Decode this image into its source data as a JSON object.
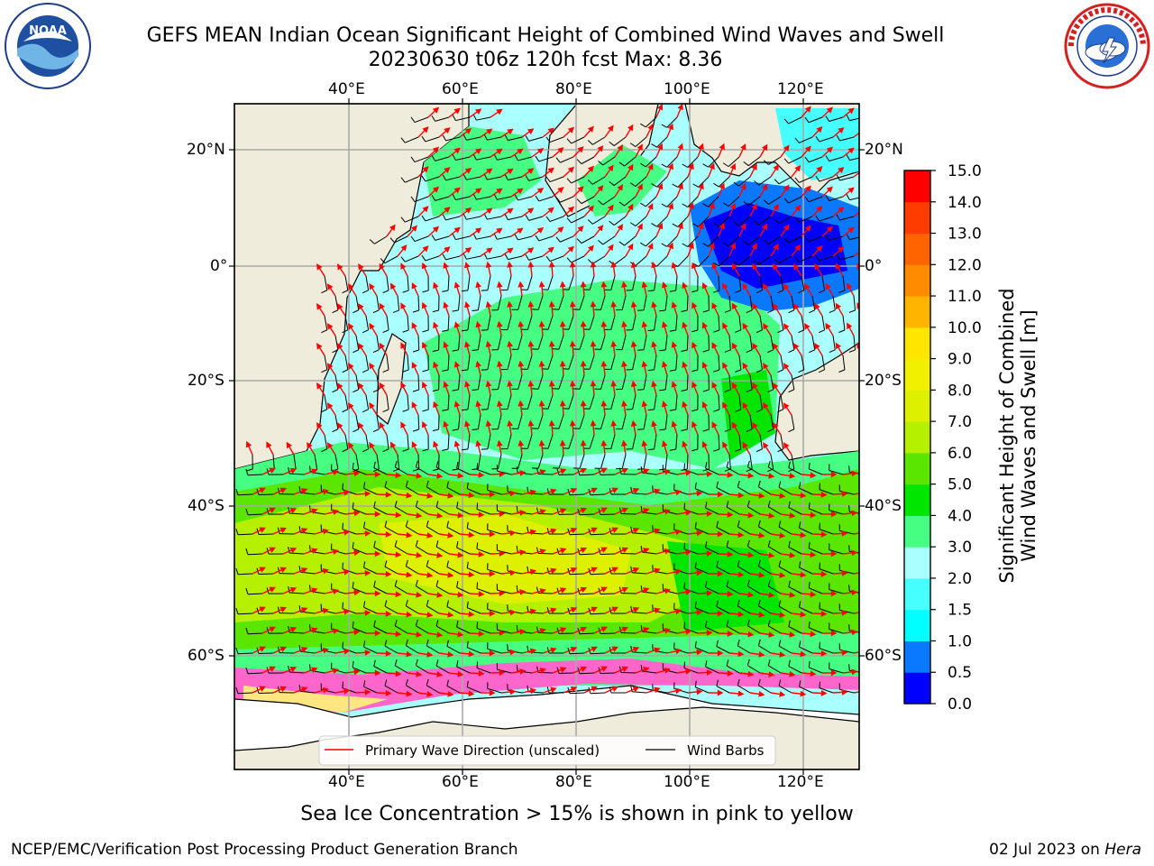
{
  "header": {
    "title_line1": "GEFS MEAN Indian Ocean Significant Height of Combined Wind Waves and Swell",
    "title_line2": "20230630 t06z 120h fcst   Max: 8.36"
  },
  "logos": {
    "left_name": "NOAA",
    "left_ring_text": "NATIONAL OCEANIC AND ATMOSPHERIC ADMINISTRATION · U.S. DEPARTMENT OF COMMERCE",
    "right_ring_text": "NATIONAL WEATHER SERVICE"
  },
  "footer": {
    "ice_note": "Sea Ice Concentration > 15% is shown in pink to yellow",
    "credit": "NCEP/EMC/Verification Post Processing Product Generation Branch",
    "date_prefix": "02 Jul 2023 on ",
    "host": "Hera"
  },
  "chart_data": {
    "type": "heatmap",
    "title": "GEFS MEAN Indian Ocean Significant Height of Combined Wind Waves and Swell",
    "subtitle": "20230630 t06z 120h fcst   Max: 8.36",
    "max_value": 8.36,
    "x_axis": {
      "ticks": [
        40,
        60,
        80,
        100,
        120
      ],
      "tick_labels": [
        "40°E",
        "60°E",
        "80°E",
        "100°E",
        "120°E"
      ],
      "xlim": [
        20,
        130
      ]
    },
    "y_axis": {
      "ticks": [
        20,
        0,
        -20,
        -40,
        -60
      ],
      "tick_labels": [
        "20°N",
        "0°",
        "20°S",
        "40°S",
        "60°S"
      ],
      "ylim": [
        -74,
        28
      ]
    },
    "grid": true,
    "legend": {
      "placement": "bottom",
      "entries": [
        "Primary Wave Direction (unscaled)",
        "Wind Barbs"
      ],
      "colors": [
        "#ff0000",
        "#000000"
      ]
    },
    "colorbar": {
      "label": "Significant Height of Combined Wind Waves and Swell [m]",
      "label_lines": [
        "Significant Height of Combined",
        "Wind Waves and Swell [m]"
      ],
      "tick_labels": [
        "0.0",
        "0.5",
        "1.0",
        "1.5",
        "2.0",
        "3.0",
        "4.0",
        "5.0",
        "6.0",
        "7.0",
        "8.0",
        "9.0",
        "10.0",
        "11.0",
        "12.0",
        "13.0",
        "14.0",
        "15.0"
      ],
      "colors": [
        "#0000ff",
        "#0a78ff",
        "#00ffff",
        "#46ffff",
        "#aaffff",
        "#46ff82",
        "#00e600",
        "#5ae600",
        "#b4f000",
        "#dcf000",
        "#f0f000",
        "#ffe600",
        "#ffb400",
        "#ff8c00",
        "#ff6400",
        "#ff3c00",
        "#ff0000"
      ]
    },
    "regions": [
      {
        "name": "northern-indian-ocean",
        "range_m": [
          2.0,
          3.0
        ],
        "color": "#aaffff"
      },
      {
        "name": "arabian-sea",
        "range_m": [
          3.0,
          4.0
        ],
        "color": "#46ff82"
      },
      {
        "name": "central-indian-ocean",
        "range_m": [
          3.0,
          4.0
        ],
        "color": "#46ff82"
      },
      {
        "name": "indonesian-seas",
        "range_m": [
          0.0,
          1.5
        ],
        "color": "#0000ff"
      },
      {
        "name": "southern-ocean",
        "range_m": [
          4.0,
          8.36
        ],
        "color": "#b4f000"
      },
      {
        "name": "sea-ice",
        "range": "pink to yellow",
        "color": "#ff66cc"
      }
    ]
  }
}
